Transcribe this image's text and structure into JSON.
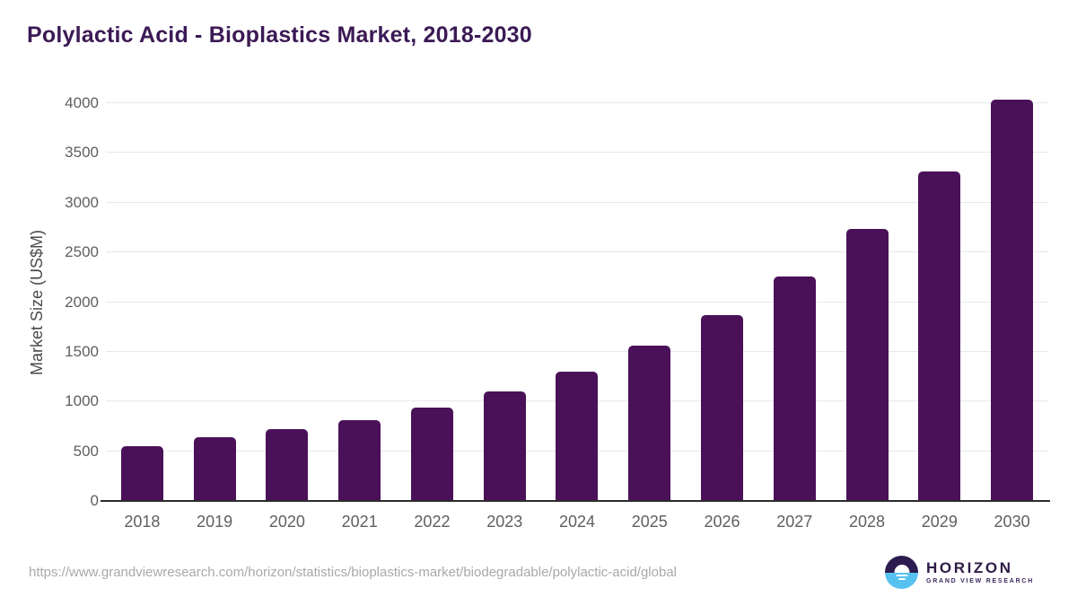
{
  "chart_data": {
    "type": "bar",
    "title": "Polylactic Acid - Bioplastics Market, 2018-2030",
    "categories": [
      "2018",
      "2019",
      "2020",
      "2021",
      "2022",
      "2023",
      "2024",
      "2025",
      "2026",
      "2027",
      "2028",
      "2029",
      "2030"
    ],
    "values": [
      555,
      645,
      720,
      810,
      940,
      1100,
      1300,
      1560,
      1870,
      2260,
      2735,
      3310,
      4035
    ],
    "xlabel": "",
    "ylabel": "Market Size (US$M)",
    "ylim": [
      0,
      4000
    ],
    "yticks": [
      0,
      500,
      1000,
      1500,
      2000,
      2500,
      3000,
      3500,
      4000
    ],
    "grid": "horizontal",
    "legend": false,
    "bar_color": "#4a1159"
  },
  "footer": {
    "source_url": "https://www.grandviewresearch.com/horizon/statistics/bioplastics-market/biodegradable/polylactic-acid/global",
    "logo": {
      "name": "HORIZON",
      "subtitle": "GRAND VIEW RESEARCH"
    }
  },
  "colors": {
    "title_text": "#3b1a55",
    "bar": "#4a1159",
    "axis_text": "#5f5f5f",
    "axis_line": "#2b2b2b",
    "gridline": "#e8e8ea",
    "url_text": "#a9a9a9",
    "logo_dark": "#2b1b4e",
    "logo_blue": "#57c2f0"
  }
}
